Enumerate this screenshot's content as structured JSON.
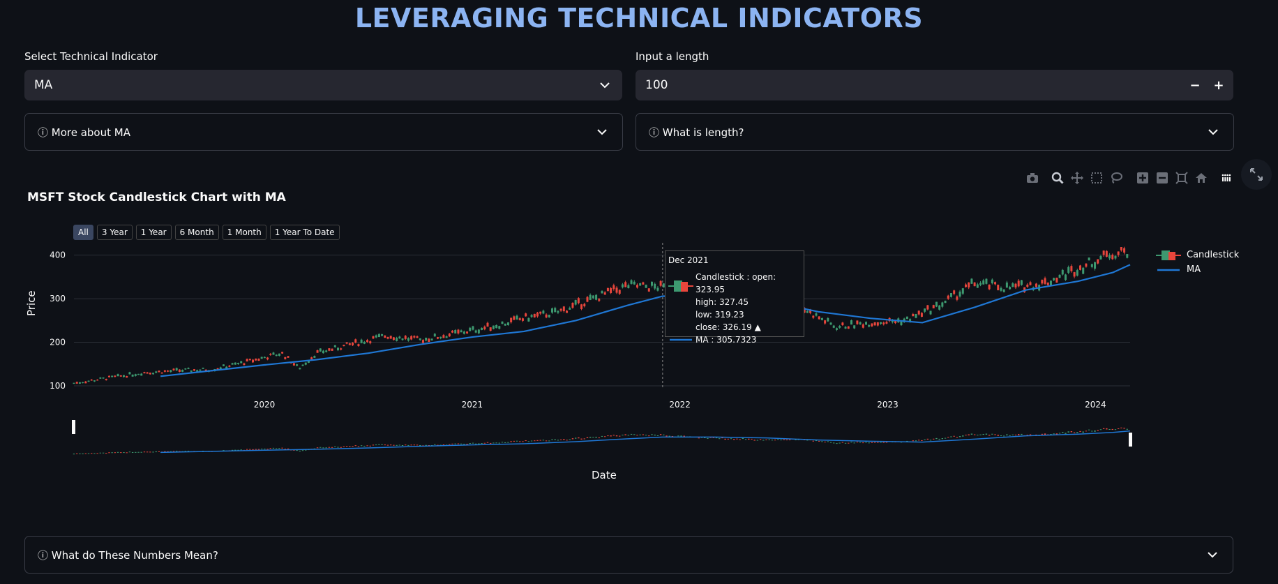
{
  "page": {
    "title": "LEVERAGING TECHNICAL INDICATORS"
  },
  "indicator_select": {
    "label": "Select Technical Indicator",
    "value": "MA"
  },
  "length_input": {
    "label": "Input a length",
    "value": "100",
    "decrement": "−",
    "increment": "+"
  },
  "expanders": {
    "about_indicator": "ⓘ More about MA",
    "what_is_length": "ⓘ What is length?",
    "numbers_meaning": "ⓘ What do These Numbers Mean?"
  },
  "modebar": {
    "icons": [
      "camera-icon",
      "zoom-icon",
      "pan-icon",
      "box-select-icon",
      "lasso-select-icon",
      "zoom-in-icon",
      "zoom-out-icon",
      "autoscale-icon",
      "reset-axes-icon",
      "plotly-logo-icon"
    ]
  },
  "range_selector": {
    "buttons": [
      "All",
      "3 Year",
      "1 Year",
      "6 Month",
      "1 Month",
      "1 Year To Date"
    ],
    "active": "All"
  },
  "legend": {
    "items": [
      "Candlestick",
      "MA"
    ]
  },
  "tooltip": {
    "date": "Dec 2021",
    "candle_lines": [
      "Candlestick : open: 323.95",
      "high: 327.45",
      "low: 319.23",
      "close: 326.19 ▲"
    ],
    "ma_line": "MA : 305.7323"
  },
  "colors": {
    "increasing": "#3d9970",
    "decreasing": "#e8463c",
    "ma": "#1f77d4",
    "title": "#8cb4f2"
  },
  "chart_data": {
    "type": "candlestick",
    "title": "MSFT Stock Candlestick Chart with MA",
    "xlabel": "Date",
    "ylabel": "Price",
    "x_ticks": [
      "2020",
      "2021",
      "2022",
      "2023",
      "2024"
    ],
    "y_ticks": [
      100,
      200,
      300,
      400
    ],
    "ylim": [
      92,
      425
    ],
    "xlim": [
      "2019-02",
      "2024-03"
    ],
    "series": [
      {
        "name": "Candlestick",
        "type": "candlestick",
        "x": [
          "2019-02",
          "2019-04",
          "2019-06",
          "2019-08",
          "2019-10",
          "2019-12",
          "2020-02",
          "2020-03",
          "2020-04",
          "2020-06",
          "2020-08",
          "2020-10",
          "2020-12",
          "2021-02",
          "2021-04",
          "2021-06",
          "2021-08",
          "2021-10",
          "2021-12",
          "2022-02",
          "2022-04",
          "2022-06",
          "2022-08",
          "2022-10",
          "2022-12",
          "2023-02",
          "2023-04",
          "2023-06",
          "2023-08",
          "2023-10",
          "2023-12",
          "2024-02",
          "2024-03"
        ],
        "close": [
          106,
          118,
          130,
          135,
          138,
          155,
          175,
          140,
          175,
          195,
          215,
          205,
          220,
          235,
          255,
          270,
          300,
          330,
          326,
          300,
          285,
          270,
          280,
          235,
          245,
          250,
          285,
          335,
          325,
          335,
          370,
          405,
          410
        ]
      },
      {
        "name": "MA",
        "type": "line",
        "x": [
          "2019-07",
          "2019-10",
          "2020-01",
          "2020-04",
          "2020-07",
          "2020-10",
          "2021-01",
          "2021-04",
          "2021-07",
          "2021-10",
          "2021-12",
          "2022-03",
          "2022-06",
          "2022-09",
          "2022-12",
          "2023-03",
          "2023-06",
          "2023-09",
          "2023-12",
          "2024-02",
          "2024-03"
        ],
        "y": [
          122,
          135,
          148,
          160,
          175,
          195,
          212,
          225,
          250,
          285,
          305.7323,
          305,
          295,
          270,
          255,
          245,
          280,
          320,
          340,
          360,
          378
        ]
      }
    ]
  }
}
